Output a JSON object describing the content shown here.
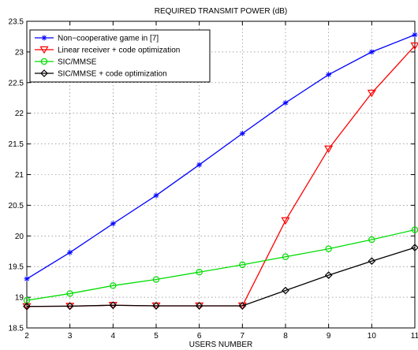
{
  "chart_data": {
    "type": "line",
    "title": "REQUIRED TRANSMIT POWER (dB)",
    "xlabel": "USERS NUMBER",
    "ylabel": "",
    "x": [
      2,
      3,
      4,
      5,
      6,
      7,
      8,
      9,
      10,
      11
    ],
    "xlim": [
      2,
      11
    ],
    "ylim": [
      18.5,
      23.5
    ],
    "xticks": [
      "2",
      "3",
      "4",
      "5",
      "6",
      "7",
      "8",
      "9",
      "10",
      "11"
    ],
    "yticks": [
      "18.5",
      "19",
      "19.5",
      "20",
      "20.5",
      "21",
      "21.5",
      "22",
      "22.5",
      "23",
      "23.5"
    ],
    "grid": true,
    "legend_position": "top-left",
    "series": [
      {
        "name": "Non−cooperative game in [7]",
        "color": "#0000ff",
        "marker": "asterisk",
        "values": [
          19.3,
          19.73,
          20.2,
          20.66,
          21.16,
          21.67,
          22.17,
          22.63,
          23.0,
          23.28
        ]
      },
      {
        "name": "Linear receiver + code optimization",
        "color": "#ff0000",
        "marker": "triangle-down",
        "values": [
          18.85,
          18.855,
          18.87,
          18.86,
          18.86,
          18.86,
          20.25,
          21.42,
          22.33,
          23.1
        ]
      },
      {
        "name": "SIC/MMSE",
        "color": "#00dd00",
        "marker": "circle",
        "values": [
          18.95,
          19.06,
          19.19,
          19.29,
          19.41,
          19.53,
          19.66,
          19.79,
          19.94,
          20.1
        ]
      },
      {
        "name": "SIC/MMSE + code optimization",
        "color": "#000000",
        "marker": "diamond",
        "values": [
          18.85,
          18.855,
          18.87,
          18.86,
          18.86,
          18.86,
          19.11,
          19.36,
          19.59,
          19.81
        ]
      }
    ]
  }
}
